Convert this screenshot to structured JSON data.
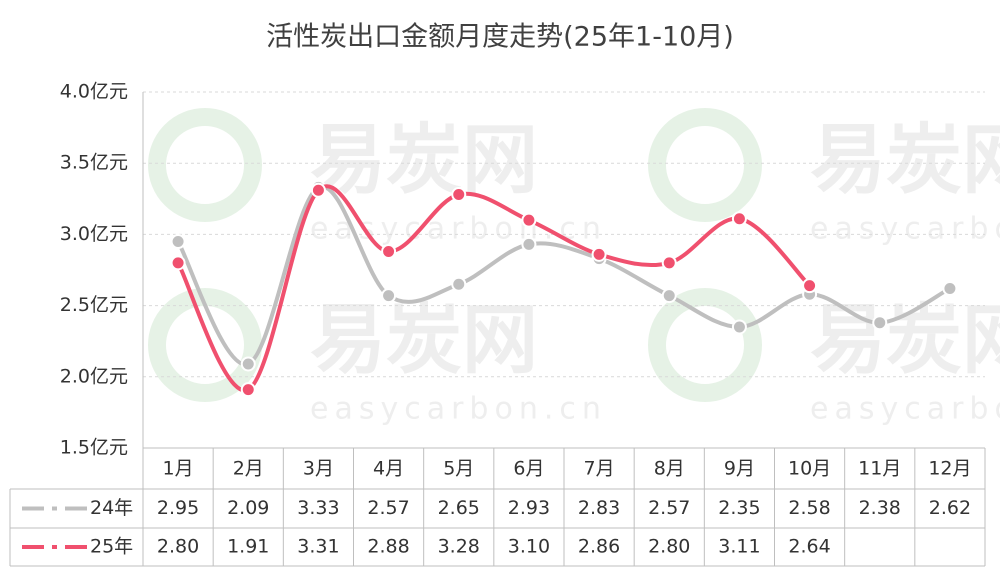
{
  "chart_data": {
    "type": "line",
    "title": "活性炭出口金额月度走势(25年1-10月)",
    "watermark": [
      "易炭网",
      "easycarbon.cn"
    ],
    "categories": [
      "1月",
      "2月",
      "3月",
      "4月",
      "5月",
      "6月",
      "7月",
      "8月",
      "9月",
      "10月",
      "11月",
      "12月"
    ],
    "series": [
      {
        "name": "24年",
        "color": "#bfbfbf",
        "values": [
          2.95,
          2.09,
          3.33,
          2.57,
          2.65,
          2.93,
          2.83,
          2.57,
          2.35,
          2.58,
          2.38,
          2.62
        ],
        "value_labels": [
          "2.95",
          "2.09",
          "3.33",
          "2.57",
          "2.65",
          "2.93",
          "2.83",
          "2.57",
          "2.35",
          "2.58",
          "2.38",
          "2.62"
        ]
      },
      {
        "name": "25年",
        "color": "#f0506e",
        "values": [
          2.8,
          1.91,
          3.31,
          2.88,
          3.28,
          3.1,
          2.86,
          2.8,
          3.11,
          2.64,
          null,
          null
        ],
        "value_labels": [
          "2.80",
          "1.91",
          "3.31",
          "2.88",
          "3.28",
          "3.10",
          "2.86",
          "2.80",
          "3.11",
          "2.64",
          null,
          null
        ]
      }
    ],
    "ylim": [
      1.5,
      4.0
    ],
    "yticks": [
      {
        "value": 1.5,
        "label": "1.5亿元"
      },
      {
        "value": 2.0,
        "label": "2.0亿元"
      },
      {
        "value": 2.5,
        "label": "2.5亿元"
      },
      {
        "value": 3.0,
        "label": "3.0亿元"
      },
      {
        "value": 3.5,
        "label": "3.5亿元"
      },
      {
        "value": 4.0,
        "label": "4.0亿元"
      }
    ],
    "grid": true
  }
}
